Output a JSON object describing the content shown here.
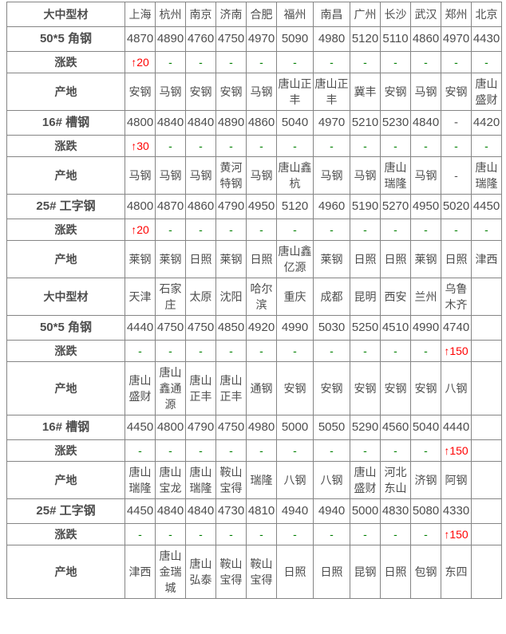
{
  "labels": {
    "change_label": "涨跌",
    "origin_label": "产地"
  },
  "colors": {
    "section_title": "#ff0000",
    "city": "#2222dd",
    "up_change": "#ff0000",
    "flat_change": "#008000",
    "number_text": "#4d4d4d",
    "grid_border": "#858585"
  },
  "table": {
    "sections": [
      {
        "title": "大中型材",
        "cities": [
          "上海",
          "杭州",
          "南京",
          "济南",
          "合肥",
          "福州",
          "南昌",
          "广州",
          "长沙",
          "武汉",
          "郑州",
          "北京"
        ],
        "products": [
          {
            "name": "50*5 角钢",
            "prices": [
              "4870",
              "4890",
              "4760",
              "4750",
              "4970",
              "5090",
              "4980",
              "5120",
              "5110",
              "4860",
              "4970",
              "4430"
            ],
            "changes": [
              "↑20",
              "-",
              "-",
              "-",
              "-",
              "-",
              "-",
              "-",
              "-",
              "-",
              "-",
              "-"
            ],
            "origins": [
              "安钢",
              "马钢",
              "安钢",
              "安钢",
              "马钢",
              "唐山正丰",
              "唐山正丰",
              "冀丰",
              "安钢",
              "马钢",
              "安钢",
              "唐山盛财"
            ]
          },
          {
            "name": "16# 槽钢",
            "prices": [
              "4800",
              "4840",
              "4840",
              "4890",
              "4860",
              "5040",
              "4970",
              "5210",
              "5230",
              "4840",
              "-",
              "4420"
            ],
            "changes": [
              "↑30",
              "-",
              "-",
              "-",
              "-",
              "-",
              "-",
              "-",
              "-",
              "-",
              "-",
              "-"
            ],
            "origins": [
              "马钢",
              "马钢",
              "马钢",
              "黄河特钢",
              "马钢",
              "唐山鑫杭",
              "马钢",
              "马钢",
              "唐山瑞隆",
              "马钢",
              "-",
              "唐山瑞隆"
            ]
          },
          {
            "name": "25# 工字钢",
            "prices": [
              "4800",
              "4870",
              "4860",
              "4790",
              "4950",
              "5120",
              "4960",
              "5190",
              "5270",
              "4950",
              "5020",
              "4450"
            ],
            "changes": [
              "↑20",
              "-",
              "-",
              "-",
              "-",
              "-",
              "-",
              "-",
              "-",
              "-",
              "-",
              "-"
            ],
            "origins": [
              "莱钢",
              "莱钢",
              "日照",
              "莱钢",
              "日照",
              "唐山鑫亿源",
              "莱钢",
              "日照",
              "日照",
              "莱钢",
              "日照",
              "津西"
            ]
          }
        ]
      },
      {
        "title": "大中型材",
        "cities": [
          "天津",
          "石家庄",
          "太原",
          "沈阳",
          "哈尔滨",
          "重庆",
          "成都",
          "昆明",
          "西安",
          "兰州",
          "乌鲁木齐",
          ""
        ],
        "products": [
          {
            "name": "50*5 角钢",
            "prices": [
              "4440",
              "4750",
              "4750",
              "4850",
              "4920",
              "4990",
              "5030",
              "5250",
              "4510",
              "4990",
              "4740",
              ""
            ],
            "changes": [
              "-",
              "-",
              "-",
              "-",
              "-",
              "-",
              "-",
              "-",
              "-",
              "-",
              "↑150",
              ""
            ],
            "origins": [
              "唐山盛财",
              "唐山鑫通源",
              "唐山正丰",
              "唐山正丰",
              "通钢",
              "安钢",
              "安钢",
              "安钢",
              "安钢",
              "安钢",
              "八钢",
              ""
            ]
          },
          {
            "name": "16# 槽钢",
            "prices": [
              "4450",
              "4800",
              "4790",
              "4750",
              "4980",
              "5000",
              "5050",
              "5290",
              "4560",
              "5040",
              "4440",
              ""
            ],
            "changes": [
              "-",
              "-",
              "-",
              "-",
              "-",
              "-",
              "-",
              "-",
              "-",
              "-",
              "↑150",
              ""
            ],
            "origins": [
              "唐山瑞隆",
              "唐山宝龙",
              "唐山瑞隆",
              "鞍山宝得",
              "瑞隆",
              "八钢",
              "八钢",
              "唐山盛财",
              "河北东山",
              "济钢",
              "阿钢",
              ""
            ]
          },
          {
            "name": "25# 工字钢",
            "prices": [
              "4450",
              "4840",
              "4840",
              "4730",
              "4810",
              "4940",
              "4940",
              "5000",
              "4830",
              "5080",
              "4330",
              ""
            ],
            "changes": [
              "-",
              "-",
              "-",
              "-",
              "-",
              "-",
              "-",
              "-",
              "-",
              "-",
              "↑150",
              ""
            ],
            "origins": [
              "津西",
              "唐山金瑞城",
              "唐山弘泰",
              "鞍山宝得",
              "鞍山宝得",
              "日照",
              "日照",
              "昆钢",
              "日照",
              "包钢",
              "东四",
              ""
            ]
          }
        ]
      }
    ]
  }
}
